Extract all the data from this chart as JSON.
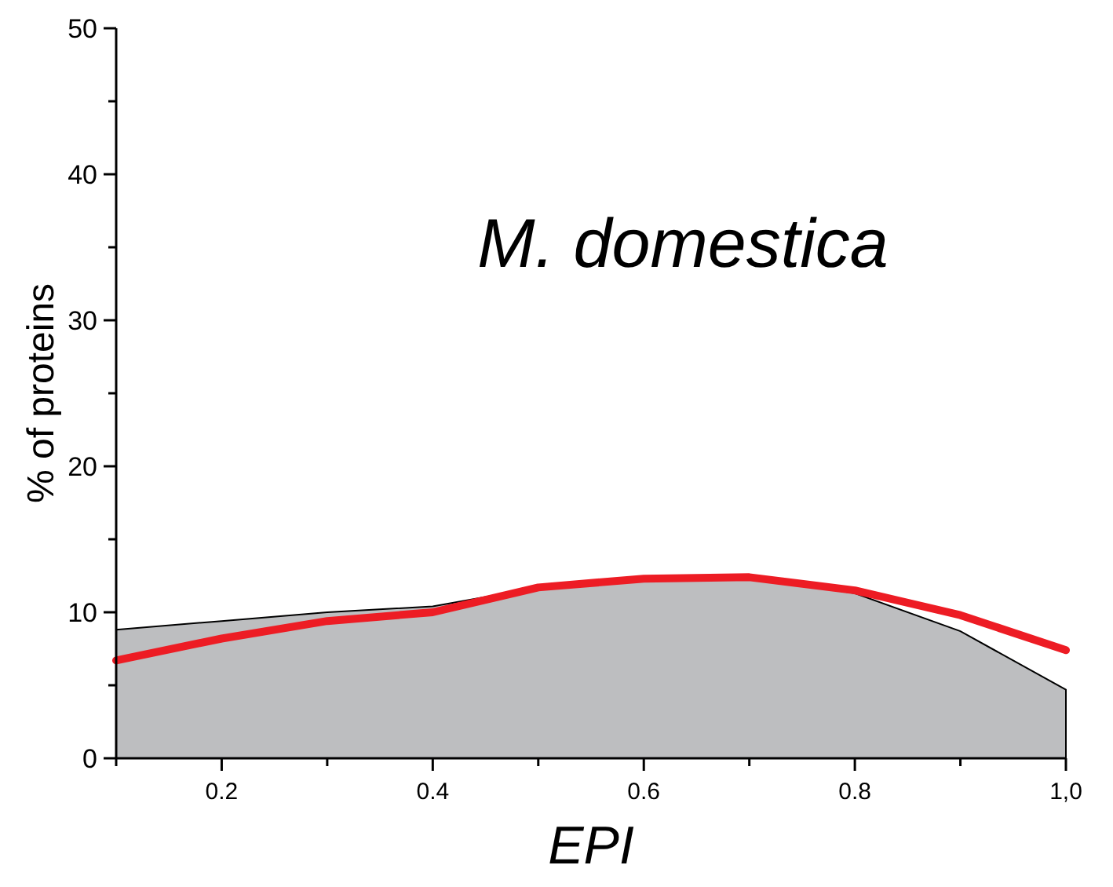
{
  "chart_data": {
    "type": "area",
    "xlabel": "EPI",
    "ylabel": "% of proteins",
    "annotations": [
      "M. domestica"
    ],
    "x": [
      0.1,
      0.2,
      0.3,
      0.4,
      0.5,
      0.6,
      0.7,
      0.8,
      0.9,
      1.0
    ],
    "series": [
      {
        "color": "#bdbec0",
        "values": [
          8.8,
          9.4,
          10.0,
          10.4,
          11.7,
          12.3,
          12.4,
          11.3,
          8.7,
          4.7
        ]
      },
      {
        "type": "line",
        "color": "#ed1c24",
        "values": [
          6.7,
          8.2,
          9.4,
          10.0,
          11.7,
          12.3,
          12.4,
          11.5,
          9.8,
          7.4
        ]
      }
    ],
    "xlim": [
      0.1,
      1.0
    ],
    "xticks": [
      {
        "value": 0.1,
        "label": null
      },
      0.2,
      {
        "value": 0.3,
        "label": null
      },
      0.4,
      {
        "value": 0.5,
        "label": null
      },
      0.6,
      {
        "value": 0.7,
        "label": null
      },
      0.8,
      {
        "value": 0.9,
        "label": null
      },
      {
        "value": 1.0,
        "label": "1,0"
      }
    ],
    "ylim": [
      0,
      50
    ],
    "yticks": [
      0,
      {
        "value": 5,
        "label": null
      },
      10,
      {
        "value": 15,
        "label": null
      },
      20,
      {
        "value": 25,
        "label": null
      },
      30,
      {
        "value": 35,
        "label": null
      },
      40,
      {
        "value": 45,
        "label": null
      },
      50
    ],
    "grid": false,
    "marker": "none",
    "line_style": "solid"
  }
}
